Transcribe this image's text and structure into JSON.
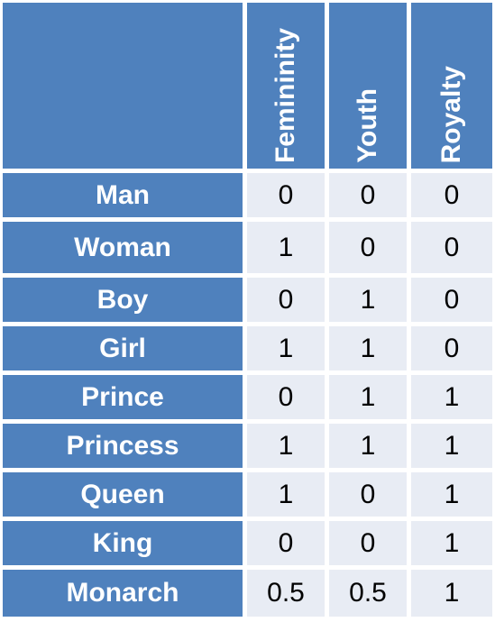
{
  "table": {
    "columns": [
      "Femininity",
      "Youth",
      "Royalty"
    ],
    "rows": [
      {
        "label": "Man",
        "values": [
          "0",
          "0",
          "0"
        ]
      },
      {
        "label": "Woman",
        "values": [
          "1",
          "0",
          "0"
        ]
      },
      {
        "label": "Boy",
        "values": [
          "0",
          "1",
          "0"
        ]
      },
      {
        "label": "Girl",
        "values": [
          "1",
          "1",
          "0"
        ]
      },
      {
        "label": "Prince",
        "values": [
          "0",
          "1",
          "1"
        ]
      },
      {
        "label": "Princess",
        "values": [
          "1",
          "1",
          "1"
        ]
      },
      {
        "label": "Queen",
        "values": [
          "1",
          "0",
          "1"
        ]
      },
      {
        "label": "King",
        "values": [
          "0",
          "0",
          "1"
        ]
      },
      {
        "label": "Monarch",
        "values": [
          "0.5",
          "0.5",
          "1"
        ]
      }
    ]
  },
  "colors": {
    "header_bg": "#4f81bd",
    "cell_bg": "#e8ecf4",
    "header_text": "#ffffff",
    "cell_text": "#000000"
  }
}
